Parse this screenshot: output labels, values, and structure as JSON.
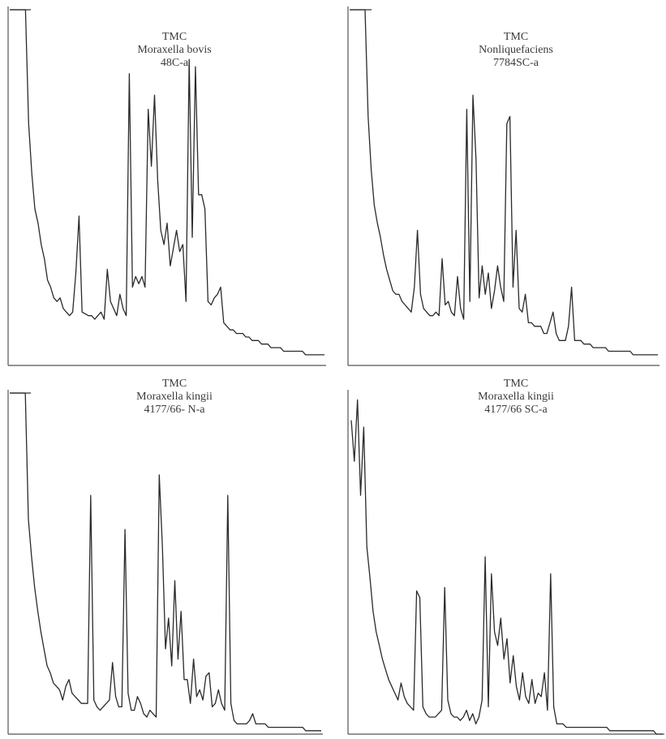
{
  "chart_data": [
    {
      "type": "line",
      "title_lines": [
        "TMC",
        "Moraxella bovis",
        "48C-a"
      ],
      "xlim": [
        0,
        100
      ],
      "ylim": [
        0,
        100
      ],
      "grid": false,
      "x": [
        0,
        2,
        5,
        6,
        7,
        8,
        9,
        10,
        11,
        12,
        13,
        14,
        15,
        16,
        17,
        18,
        19,
        20,
        21,
        22,
        23,
        25,
        26,
        27,
        28,
        29,
        30,
        31,
        32,
        33,
        34,
        35,
        36,
        37,
        38,
        39,
        40,
        41,
        42,
        43,
        44,
        45,
        46,
        47,
        48,
        49,
        50,
        51,
        52,
        53,
        54,
        55,
        56,
        57,
        58,
        59,
        60,
        61,
        62,
        63,
        64,
        65,
        66,
        67,
        68,
        69,
        70,
        71,
        72,
        73,
        74,
        75,
        76,
        77,
        78,
        79,
        80,
        81,
        82,
        83,
        84,
        85,
        86,
        87,
        88,
        89,
        90,
        91,
        92,
        93,
        94,
        95,
        96,
        97,
        98,
        99,
        100
      ],
      "y": [
        100,
        100,
        100,
        68,
        54,
        44,
        40,
        34,
        30,
        24,
        22,
        19,
        18,
        19,
        16,
        15,
        14,
        15,
        26,
        42,
        15,
        14,
        14,
        13,
        14,
        15,
        13,
        27,
        18,
        16,
        14,
        20,
        16,
        14,
        82,
        22,
        25,
        23,
        25,
        22,
        72,
        56,
        76,
        52,
        38,
        34,
        40,
        28,
        33,
        38,
        32,
        34,
        18,
        86,
        36,
        84,
        48,
        48,
        44,
        18,
        17,
        19,
        20,
        22,
        12,
        11,
        10,
        10,
        9,
        9,
        9,
        8,
        8,
        7,
        7,
        7,
        6,
        6,
        6,
        5,
        5,
        5,
        5,
        4,
        4,
        4,
        4,
        4,
        4,
        4,
        3,
        3,
        3,
        3,
        3,
        3,
        3
      ]
    },
    {
      "type": "line",
      "title_lines": [
        "TMC",
        "Nonliquefaciens",
        "7784SC-a"
      ],
      "xlim": [
        0,
        100
      ],
      "ylim": [
        0,
        100
      ],
      "grid": false,
      "x": [
        0,
        2,
        5,
        6,
        7,
        8,
        9,
        10,
        11,
        12,
        13,
        14,
        15,
        16,
        17,
        18,
        19,
        20,
        21,
        22,
        23,
        24,
        25,
        26,
        27,
        28,
        29,
        30,
        31,
        32,
        33,
        34,
        35,
        36,
        37,
        38,
        39,
        40,
        41,
        42,
        43,
        44,
        45,
        46,
        47,
        48,
        49,
        50,
        51,
        52,
        53,
        54,
        55,
        56,
        57,
        58,
        59,
        60,
        61,
        62,
        63,
        64,
        65,
        66,
        67,
        68,
        69,
        70,
        71,
        72,
        73,
        74,
        75,
        76,
        77,
        78,
        79,
        80,
        81,
        82,
        83,
        84,
        85,
        86,
        87,
        88,
        89,
        90,
        91,
        92,
        93,
        94,
        95,
        96,
        97,
        98,
        99,
        100
      ],
      "y": [
        100,
        100,
        100,
        70,
        55,
        45,
        40,
        36,
        31,
        27,
        24,
        21,
        20,
        20,
        18,
        17,
        16,
        15,
        22,
        38,
        20,
        16,
        15,
        14,
        14,
        15,
        14,
        30,
        17,
        18,
        15,
        14,
        25,
        16,
        13,
        72,
        18,
        76,
        58,
        19,
        28,
        20,
        26,
        16,
        21,
        28,
        22,
        18,
        68,
        70,
        22,
        38,
        16,
        15,
        20,
        12,
        12,
        11,
        11,
        11,
        9,
        9,
        12,
        15,
        9,
        7,
        7,
        7,
        11,
        22,
        7,
        7,
        7,
        6,
        6,
        6,
        5,
        5,
        5,
        5,
        5,
        4,
        4,
        4,
        4,
        4,
        4,
        4,
        4,
        3,
        3,
        3,
        3,
        3,
        3,
        3,
        3,
        3
      ]
    },
    {
      "type": "line",
      "title_lines": [
        "TMC",
        "Moraxella kingii",
        "4177/66- N-a"
      ],
      "xlim": [
        0,
        100
      ],
      "ylim": [
        0,
        100
      ],
      "grid": false,
      "x": [
        0,
        2,
        5,
        6,
        7,
        8,
        9,
        10,
        11,
        12,
        13,
        14,
        15,
        16,
        17,
        18,
        19,
        20,
        21,
        22,
        23,
        25,
        26,
        27,
        28,
        29,
        30,
        31,
        32,
        33,
        34,
        35,
        36,
        37,
        38,
        39,
        40,
        41,
        42,
        43,
        44,
        45,
        46,
        47,
        48,
        49,
        50,
        51,
        52,
        53,
        54,
        55,
        56,
        57,
        58,
        59,
        60,
        61,
        62,
        63,
        64,
        65,
        66,
        67,
        68,
        69,
        70,
        71,
        72,
        73,
        74,
        75,
        76,
        77,
        78,
        79,
        80,
        81,
        82,
        83,
        84,
        85,
        86,
        87,
        88,
        89,
        90,
        91,
        92,
        93,
        94,
        95,
        96,
        97,
        98,
        99,
        100
      ],
      "y": [
        100,
        100,
        100,
        63,
        52,
        43,
        36,
        30,
        25,
        20,
        18,
        15,
        14,
        13,
        10,
        14,
        16,
        12,
        11,
        10,
        9,
        9,
        70,
        10,
        8,
        7,
        8,
        9,
        10,
        21,
        11,
        8,
        8,
        60,
        12,
        7,
        7,
        11,
        9,
        6,
        5,
        7,
        6,
        5,
        76,
        55,
        25,
        34,
        20,
        45,
        22,
        36,
        16,
        16,
        9,
        22,
        11,
        13,
        10,
        17,
        18,
        8,
        9,
        13,
        9,
        7,
        70,
        9,
        4,
        3,
        3,
        3,
        3,
        4,
        6,
        3,
        3,
        3,
        3,
        2,
        2,
        2,
        2,
        2,
        2,
        2,
        2,
        2,
        2,
        2,
        2,
        1,
        1,
        1,
        1,
        1,
        1
      ]
    },
    {
      "type": "line",
      "title_lines": [
        "TMC",
        "Moraxella kingii",
        "4177/66 SC-a"
      ],
      "xlim": [
        0,
        100
      ],
      "ylim": [
        0,
        100
      ],
      "grid": false,
      "x": [
        0,
        1,
        2,
        3,
        4,
        5,
        6,
        7,
        8,
        9,
        10,
        11,
        12,
        13,
        14,
        15,
        16,
        17,
        18,
        19,
        20,
        21,
        22,
        23,
        24,
        25,
        26,
        27,
        28,
        29,
        30,
        31,
        32,
        33,
        34,
        35,
        36,
        37,
        38,
        39,
        40,
        41,
        42,
        43,
        44,
        45,
        46,
        47,
        48,
        49,
        50,
        51,
        52,
        53,
        54,
        55,
        56,
        57,
        58,
        59,
        60,
        61,
        62,
        63,
        64,
        65,
        66,
        67,
        68,
        69,
        70,
        71,
        72,
        73,
        74,
        75,
        76,
        77,
        78,
        79,
        80,
        81,
        82,
        83,
        84,
        85,
        86,
        87,
        88,
        89,
        90,
        91,
        92,
        93,
        94,
        95,
        96,
        97,
        98,
        99,
        100
      ],
      "y": [
        92,
        80,
        98,
        70,
        90,
        55,
        46,
        36,
        30,
        26,
        22,
        19,
        16,
        14,
        12,
        10,
        15,
        11,
        9,
        8,
        7,
        42,
        40,
        8,
        6,
        5,
        5,
        5,
        6,
        7,
        43,
        10,
        6,
        5,
        5,
        4,
        5,
        7,
        4,
        6,
        3,
        5,
        10,
        52,
        8,
        47,
        30,
        26,
        34,
        22,
        28,
        15,
        23,
        14,
        10,
        18,
        11,
        9,
        16,
        9,
        12,
        11,
        18,
        7,
        47,
        8,
        3,
        3,
        3,
        2,
        2,
        2,
        2,
        2,
        2,
        2,
        2,
        2,
        2,
        2,
        2,
        2,
        2,
        1,
        1,
        1,
        1,
        1,
        1,
        1,
        1,
        1,
        1,
        1,
        1,
        1,
        1,
        1,
        0,
        0,
        0
      ]
    }
  ]
}
